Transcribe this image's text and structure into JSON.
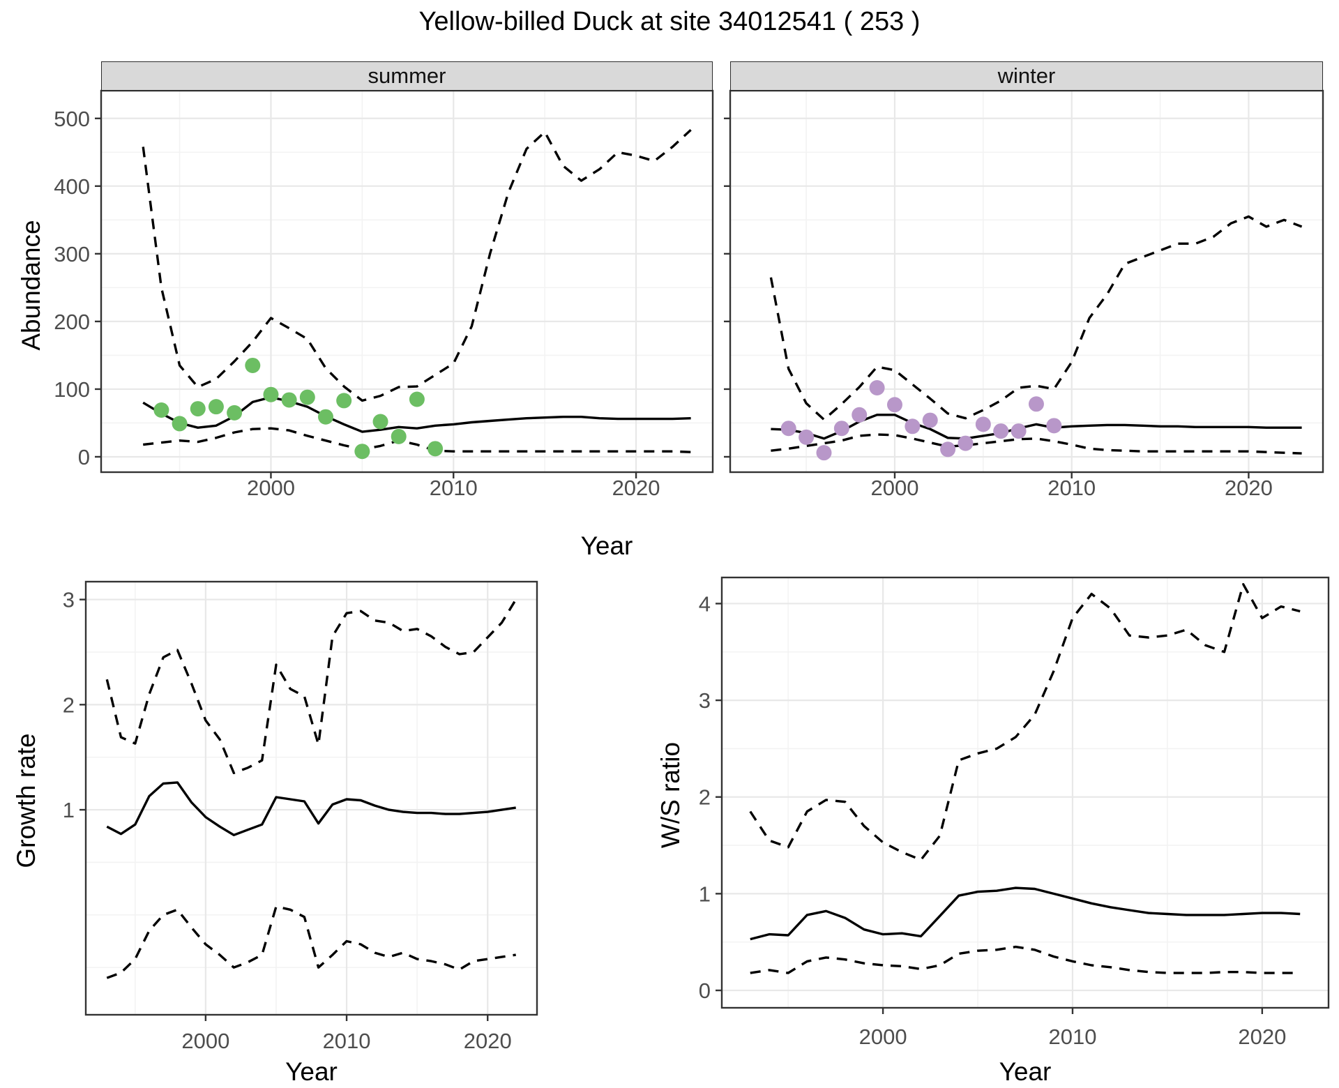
{
  "figure": {
    "title": "Yellow-billed Duck at site 34012541 ( 253 )",
    "x_axis_title": "Year",
    "abundance_axis_title": "Abundance",
    "growth_axis_title": "Growth rate",
    "ws_axis_title": "W/S ratio"
  },
  "colors": {
    "summer_points": "#6cbe63",
    "winter_points": "#b897c9",
    "line": "#000000",
    "grid_major": "#e8e8e8",
    "grid_minor": "#f3f3f3",
    "panel_border": "#333333",
    "tick_text": "#4d4d4d",
    "strip_bg": "#d9d9d9"
  },
  "chart_data": {
    "type": "line",
    "title": "Yellow-billed Duck at site 34012541 ( 253 )",
    "xlabel": "Year",
    "grid": true,
    "legend": "none",
    "facets": [
      {
        "label": "summer",
        "ylabel": "Abundance",
        "x_ticks": [
          2000,
          2010,
          2020
        ],
        "x_minor": [
          1995,
          2005,
          2015
        ],
        "y_ticks": [
          0,
          100,
          200,
          300,
          400,
          500
        ],
        "y_minor": [
          50,
          150,
          250,
          350,
          450
        ],
        "xlim": [
          1990.7,
          2024.2
        ],
        "ylim": [
          -22.7,
          541
        ],
        "observations": {
          "years": [
            1994,
            1995,
            1996,
            1997,
            1998,
            1999,
            2000,
            2001,
            2002,
            2003,
            2004,
            2005,
            2006,
            2007,
            2008,
            2009
          ],
          "values": [
            69,
            49,
            71,
            74,
            65,
            135,
            92,
            84,
            88,
            59,
            83,
            8,
            52,
            30,
            85,
            12
          ]
        },
        "fit": {
          "year_min": 1993,
          "year_max": 2023,
          "values": [
            80,
            64,
            50,
            43,
            46,
            60,
            81,
            88,
            82,
            74,
            60,
            48,
            37,
            40,
            44,
            42,
            46,
            48,
            51,
            53,
            55,
            57,
            58,
            59,
            59,
            57,
            56,
            56,
            56,
            56,
            57
          ]
        },
        "ci_lower": {
          "year_min": 1993,
          "year_max": 2023,
          "values": [
            18,
            21,
            24,
            22,
            28,
            36,
            41,
            42,
            39,
            31,
            24,
            17,
            11,
            16,
            24,
            18,
            9,
            8,
            8,
            8,
            8,
            8,
            8,
            8,
            8,
            8,
            8,
            8,
            8,
            8,
            7
          ]
        },
        "ci_upper": {
          "year_min": 1993,
          "year_max": 2023,
          "values": [
            458,
            250,
            135,
            103,
            115,
            141,
            170,
            205,
            190,
            174,
            131,
            104,
            83,
            90,
            103,
            104,
            121,
            138,
            193,
            300,
            390,
            455,
            480,
            430,
            408,
            425,
            450,
            445,
            437,
            458,
            483
          ]
        }
      },
      {
        "label": "winter",
        "ylabel": "Abundance",
        "x_ticks": [
          2000,
          2010,
          2020
        ],
        "x_minor": [
          1995,
          2005,
          2015
        ],
        "y_ticks": [
          0,
          100,
          200,
          300,
          400,
          500
        ],
        "y_minor": [
          50,
          150,
          250,
          350,
          450
        ],
        "xlim": [
          1990.7,
          2024.2
        ],
        "ylim": [
          -22.7,
          541
        ],
        "observations": {
          "years": [
            1994,
            1995,
            1996,
            1997,
            1998,
            1999,
            2000,
            2001,
            2002,
            2003,
            2004,
            2005,
            2006,
            2007,
            2008,
            2009
          ],
          "values": [
            42,
            29,
            6,
            42,
            62,
            102,
            77,
            45,
            54,
            11,
            20,
            48,
            38,
            38,
            78,
            46
          ]
        },
        "fit": {
          "year_min": 1993,
          "year_max": 2023,
          "values": [
            41,
            40,
            35,
            27,
            38,
            52,
            62,
            62,
            50,
            41,
            28,
            27,
            31,
            35,
            42,
            48,
            43,
            45,
            46,
            47,
            47,
            46,
            45,
            45,
            44,
            44,
            44,
            44,
            43,
            43,
            43
          ]
        },
        "ci_lower": {
          "year_min": 1993,
          "year_max": 2023,
          "values": [
            9,
            12,
            16,
            20,
            24,
            31,
            33,
            32,
            27,
            21,
            15,
            17,
            20,
            23,
            26,
            27,
            23,
            18,
            12,
            10,
            9,
            8,
            8,
            8,
            8,
            8,
            8,
            8,
            7,
            6,
            5
          ]
        },
        "ci_upper": {
          "year_min": 1993,
          "year_max": 2023,
          "values": [
            265,
            130,
            79,
            55,
            78,
            103,
            133,
            128,
            107,
            86,
            64,
            57,
            69,
            83,
            102,
            105,
            100,
            140,
            205,
            240,
            285,
            295,
            305,
            315,
            315,
            325,
            345,
            355,
            340,
            350,
            340
          ]
        }
      }
    ],
    "growth_rate": {
      "ylabel": "Growth rate",
      "x_ticks": [
        2000,
        2010,
        2020
      ],
      "x_minor": [
        1995,
        2005,
        2015
      ],
      "y_ticks": [
        1,
        2,
        3
      ],
      "y_minor": [
        -0.5,
        0,
        0.5,
        1.5,
        2.5
      ],
      "xlim": [
        1991.5,
        2023.5
      ],
      "ylim": [
        -0.95,
        3.17
      ],
      "fit": {
        "year_min": 1993,
        "year_max": 2022,
        "values": [
          0.84,
          0.77,
          0.86,
          1.13,
          1.25,
          1.26,
          1.07,
          0.93,
          0.84,
          0.76,
          0.81,
          0.86,
          1.12,
          1.1,
          1.08,
          0.87,
          1.05,
          1.1,
          1.09,
          1.04,
          1.0,
          0.98,
          0.97,
          0.97,
          0.96,
          0.96,
          0.97,
          0.98,
          1.0,
          1.02
        ]
      },
      "ci_lower": {
        "year_min": 1993,
        "year_max": 2022,
        "values": [
          -0.6,
          -0.55,
          -0.42,
          -0.15,
          0.0,
          0.05,
          -0.12,
          -0.28,
          -0.38,
          -0.5,
          -0.45,
          -0.38,
          0.08,
          0.05,
          -0.02,
          -0.5,
          -0.38,
          -0.25,
          -0.28,
          -0.36,
          -0.4,
          -0.36,
          -0.42,
          -0.44,
          -0.47,
          -0.52,
          -0.44,
          -0.42,
          -0.4,
          -0.38
        ]
      },
      "ci_upper": {
        "year_min": 1993,
        "year_max": 2022,
        "values": [
          2.24,
          1.69,
          1.63,
          2.1,
          2.45,
          2.52,
          2.2,
          1.85,
          1.67,
          1.35,
          1.4,
          1.47,
          2.38,
          2.15,
          2.08,
          1.62,
          2.65,
          2.87,
          2.89,
          2.8,
          2.78,
          2.7,
          2.72,
          2.65,
          2.55,
          2.48,
          2.5,
          2.64,
          2.78,
          3.0
        ]
      }
    },
    "ws_ratio": {
      "ylabel": "W/S ratio",
      "x_ticks": [
        2000,
        2010,
        2020
      ],
      "x_minor": [
        1995,
        2005,
        2015
      ],
      "y_ticks": [
        0,
        1,
        2,
        3,
        4
      ],
      "y_minor": [
        0.5,
        1.5,
        2.5,
        3.5
      ],
      "xlim": [
        1991.5,
        2023.5
      ],
      "ylim": [
        -0.18,
        4.27
      ],
      "fit": {
        "year_min": 1993,
        "year_max": 2022,
        "values": [
          0.53,
          0.58,
          0.57,
          0.78,
          0.82,
          0.75,
          0.63,
          0.58,
          0.59,
          0.56,
          0.77,
          0.98,
          1.02,
          1.03,
          1.06,
          1.05,
          1.0,
          0.95,
          0.9,
          0.86,
          0.83,
          0.8,
          0.79,
          0.78,
          0.78,
          0.78,
          0.79,
          0.8,
          0.8,
          0.79
        ]
      },
      "ci_lower": {
        "year_min": 1993,
        "year_max": 2022,
        "values": [
          0.18,
          0.21,
          0.18,
          0.3,
          0.34,
          0.32,
          0.28,
          0.26,
          0.25,
          0.22,
          0.26,
          0.38,
          0.41,
          0.42,
          0.45,
          0.42,
          0.35,
          0.3,
          0.26,
          0.24,
          0.21,
          0.19,
          0.18,
          0.18,
          0.18,
          0.19,
          0.19,
          0.18,
          0.18,
          0.18
        ]
      },
      "ci_upper": {
        "year_min": 1993,
        "year_max": 2022,
        "values": [
          1.85,
          1.55,
          1.48,
          1.85,
          1.97,
          1.95,
          1.7,
          1.53,
          1.43,
          1.35,
          1.6,
          2.38,
          2.45,
          2.5,
          2.62,
          2.85,
          3.3,
          3.85,
          4.1,
          3.95,
          3.67,
          3.65,
          3.67,
          3.73,
          3.57,
          3.5,
          4.2,
          3.85,
          3.97,
          3.92
        ]
      }
    }
  }
}
